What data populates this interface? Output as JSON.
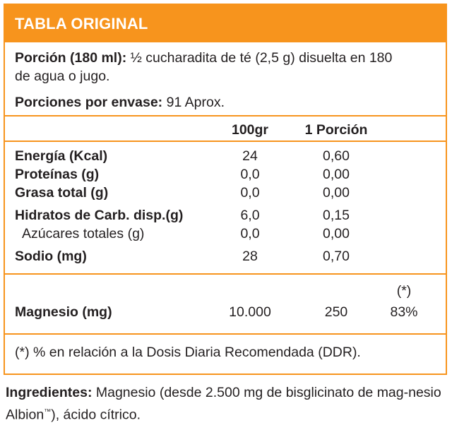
{
  "header": {
    "title": "TABLA ORIGINAL"
  },
  "serving": {
    "label": "Porción (180 ml):",
    "line1": "½ cucharadita de té (2,5 g)  disuelta en 180",
    "line2": "de agua o jugo."
  },
  "servings_per_container": {
    "label": "Porciones por envase:",
    "value": "91 Aprox."
  },
  "columns": {
    "per100": "100gr",
    "per_serving": "1 Porción"
  },
  "nutrients": {
    "energia": {
      "label": "Energía (Kcal)",
      "per100": "24",
      "serving": "0,60"
    },
    "proteinas": {
      "label": "Proteínas (g)",
      "per100": "0,0",
      "serving": "0,00"
    },
    "grasa": {
      "label": "Grasa total (g)",
      "per100": "0,0",
      "serving": "0,00"
    },
    "hidratos": {
      "label": "Hidratos de Carb. disp.(g)",
      "per100": "6,0",
      "serving": "0,15"
    },
    "azucares": {
      "label": "Azúcares totales (g)",
      "per100": "0,0",
      "serving": "0,00"
    },
    "sodio": {
      "label": "Sodio (mg)",
      "per100": "28",
      "serving": "0,70"
    }
  },
  "magnesio": {
    "label": "Magnesio (mg)",
    "per100": "10.000",
    "serving": "250",
    "ddr_marker": "(*)",
    "ddr": "83%"
  },
  "footnote": "(*) % en relación a la Dosis Diaria Recomendada (DDR).",
  "ingredients": {
    "label": "Ingredientes:",
    "text_part1": " Magnesio (desde 2.500 mg de bisglicinato de mag-nesio Albion",
    "tm": "™",
    "text_part2": "), ácido cítrico."
  },
  "colors": {
    "accent": "#f7941d",
    "text": "#231f20"
  }
}
